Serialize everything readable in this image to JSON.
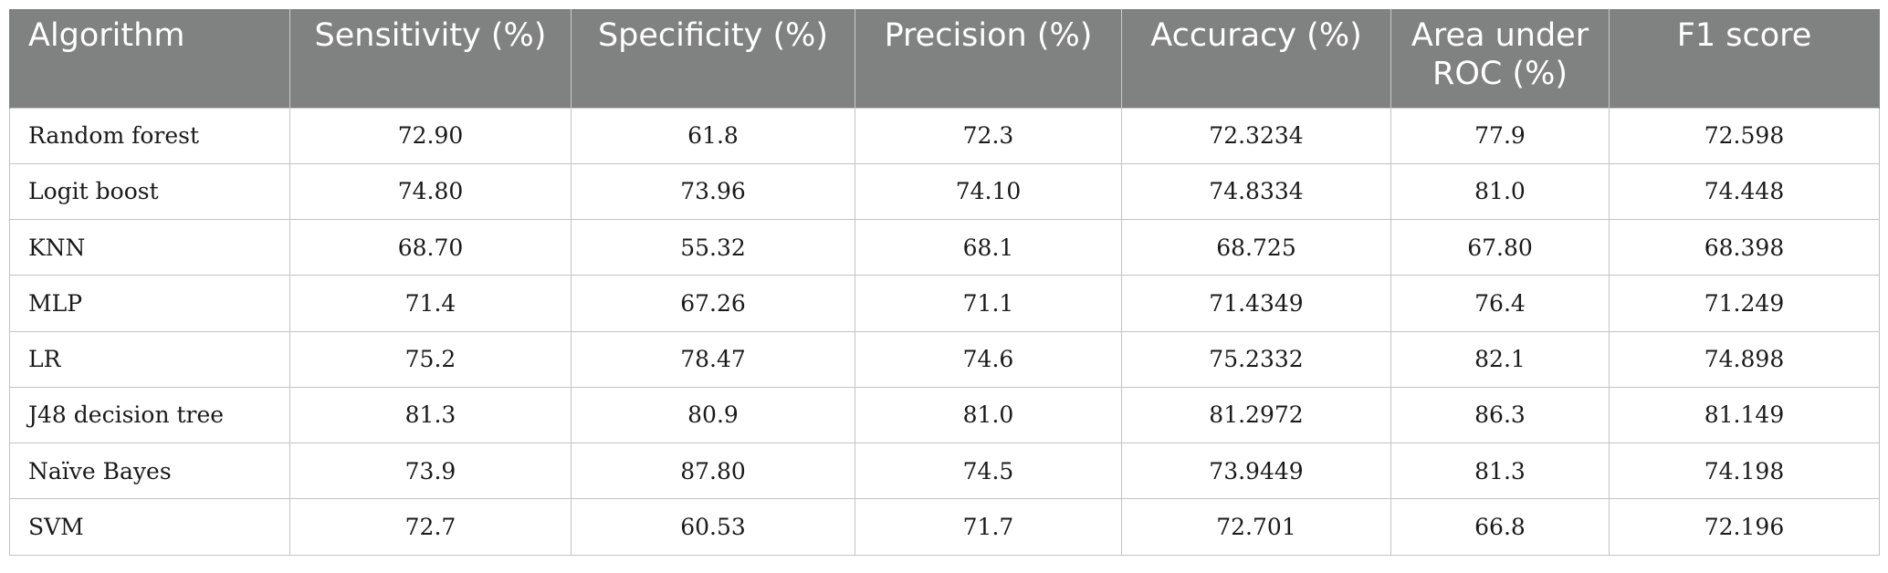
{
  "table": {
    "headers": [
      "Algorithm",
      "Sensitivity (%)",
      "Specificity (%)",
      "Precision (%)",
      "Accuracy (%)",
      "Area under ROC (%)",
      "F1 score"
    ],
    "rows": [
      [
        "Random forest",
        "72.90",
        "61.8",
        "72.3",
        "72.3234",
        "77.9",
        "72.598"
      ],
      [
        "Logit boost",
        "74.80",
        "73.96",
        "74.10",
        "74.8334",
        "81.0",
        "74.448"
      ],
      [
        "KNN",
        "68.70",
        "55.32",
        "68.1",
        "68.725",
        "67.80",
        "68.398"
      ],
      [
        "MLP",
        "71.4",
        "67.26",
        "71.1",
        "71.4349",
        "76.4",
        "71.249"
      ],
      [
        "LR",
        "75.2",
        "78.47",
        "74.6",
        "75.2332",
        "82.1",
        "74.898"
      ],
      [
        "J48 decision tree",
        "81.3",
        "80.9",
        "81.0",
        "81.2972",
        "86.3",
        "81.149"
      ],
      [
        "Naïve Bayes",
        "73.9",
        "87.80",
        "74.5",
        "73.9449",
        "81.3",
        "74.198"
      ],
      [
        "SVM",
        "72.7",
        "60.53",
        "71.7",
        "72.701",
        "66.8",
        "72.196"
      ]
    ]
  }
}
